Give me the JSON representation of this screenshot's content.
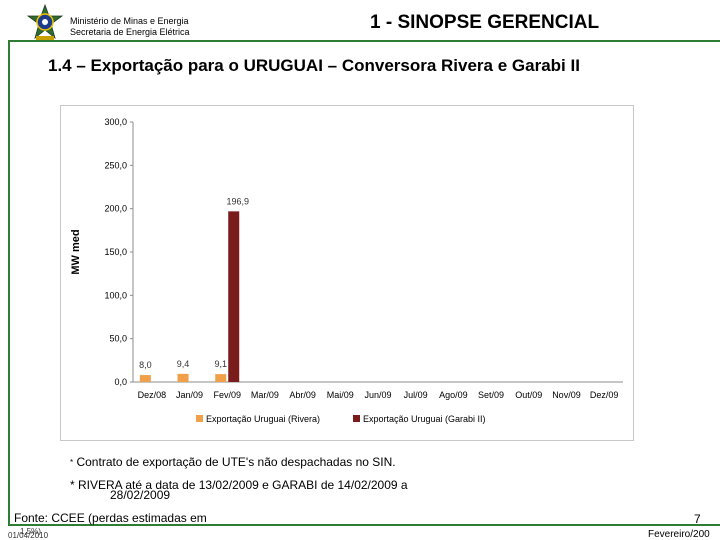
{
  "header": {
    "ministry_line1": "Ministério de Minas e Energia",
    "ministry_line2": "Secretaria de Energia Elétrica",
    "section_title": "1 - SINOPSE GERENCIAL"
  },
  "slide_title": "1.4 – Exportação para o URUGUAI – Conversora Rivera e Garabi II",
  "colors": {
    "frame": "#2e7d32",
    "rivera": "#f0a048",
    "garabi": "#7b1c1c",
    "axis": "#8c8c8c"
  },
  "chart_data": {
    "type": "bar",
    "title": "",
    "xlabel": "",
    "ylabel": "MW med",
    "ylim": [
      0,
      300
    ],
    "yticks": [
      "0,0",
      "50,0",
      "100,0",
      "150,0",
      "200,0",
      "250,0",
      "300,0"
    ],
    "categories": [
      "Dez/08",
      "Jan/09",
      "Fev/09",
      "Mar/09",
      "Abr/09",
      "Mai/09",
      "Jun/09",
      "Jul/09",
      "Ago/09",
      "Set/09",
      "Out/09",
      "Nov/09",
      "Dez/09"
    ],
    "series": [
      {
        "name": "Exportação Uruguai (Rivera)",
        "values": [
          8.0,
          9.4,
          9.1,
          null,
          null,
          null,
          null,
          null,
          null,
          null,
          null,
          null,
          null
        ],
        "labels": [
          "8,0",
          "9,4",
          "9,1",
          "",
          "",
          "",
          "",
          "",
          "",
          "",
          "",
          "",
          ""
        ]
      },
      {
        "name": "Exportação Uruguai (Garabi II)",
        "values": [
          null,
          null,
          196.9,
          null,
          null,
          null,
          null,
          null,
          null,
          null,
          null,
          null,
          null
        ],
        "labels": [
          "",
          "",
          "196,9",
          "",
          "",
          "",
          "",
          "",
          "",
          "",
          "",
          "",
          ""
        ]
      }
    ],
    "legend_position": "bottom"
  },
  "notes": {
    "note1": "Contrato de exportação de UTE's  não despachadas no SIN.",
    "note1_mark": "*",
    "note2_line1": "* RIVERA  até a data de 13/02/2009 e GARABI de 14/02/2009 a",
    "note2_line2": "28/02/2009"
  },
  "footer": {
    "source": "Fonte: CCEE (perdas estimadas em",
    "source_tail": "1,5%)",
    "page_number": "7",
    "date": "Fevereiro/200",
    "left_small": "01/04/2010"
  }
}
